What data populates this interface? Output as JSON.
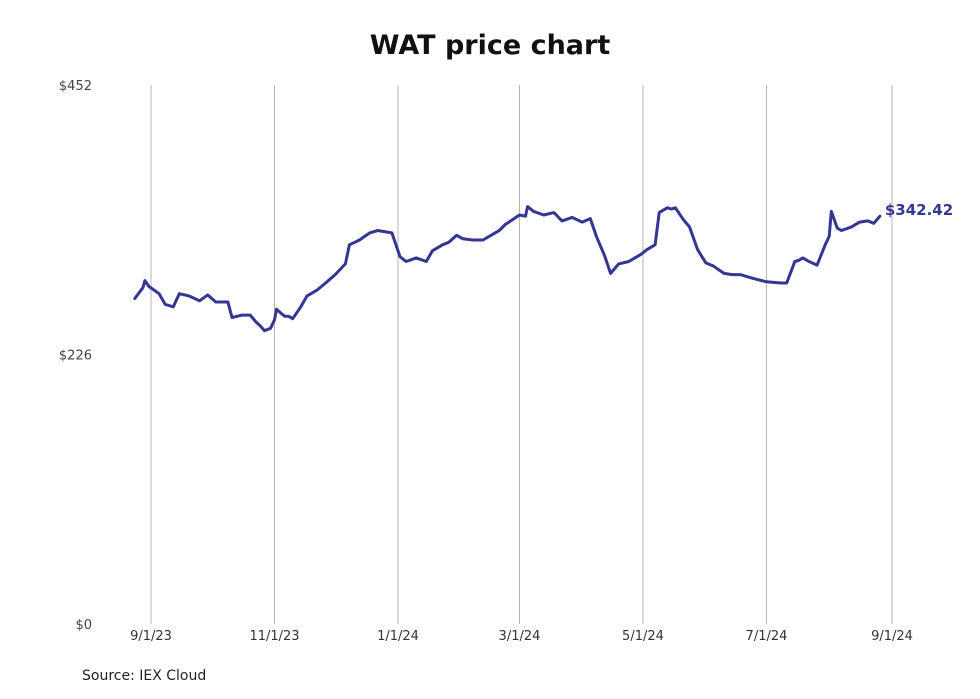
{
  "chart_data": {
    "type": "line",
    "title": "WAT price chart",
    "xlabel": "",
    "ylabel": "",
    "ylim": [
      0,
      452
    ],
    "y_ticks": [
      {
        "value": 0,
        "label": "$0"
      },
      {
        "value": 226,
        "label": "$226"
      },
      {
        "value": 452,
        "label": "$452"
      }
    ],
    "x_ticks": [
      {
        "date": "2023-09-01",
        "label": "9/1/23"
      },
      {
        "date": "2023-11-01",
        "label": "11/1/23"
      },
      {
        "date": "2024-01-01",
        "label": "1/1/24"
      },
      {
        "date": "2024-03-01",
        "label": "3/1/24"
      },
      {
        "date": "2024-05-01",
        "label": "5/1/24"
      },
      {
        "date": "2024-07-01",
        "label": "7/1/24"
      },
      {
        "date": "2024-09-01",
        "label": "9/1/24"
      }
    ],
    "grid": "vertical",
    "line_color": "#353594",
    "last_value_label": "$342.42",
    "series": [
      {
        "points": [
          [
            "2023-08-24",
            273
          ],
          [
            "2023-08-28",
            282
          ],
          [
            "2023-08-29",
            288
          ],
          [
            "2023-08-31",
            283
          ],
          [
            "2023-09-05",
            277
          ],
          [
            "2023-09-08",
            268
          ],
          [
            "2023-09-12",
            266
          ],
          [
            "2023-09-15",
            277
          ],
          [
            "2023-09-20",
            275
          ],
          [
            "2023-09-25",
            271
          ],
          [
            "2023-09-29",
            276
          ],
          [
            "2023-10-03",
            270
          ],
          [
            "2023-10-06",
            270
          ],
          [
            "2023-10-09",
            270
          ],
          [
            "2023-10-11",
            257
          ],
          [
            "2023-10-16",
            259
          ],
          [
            "2023-10-20",
            259
          ],
          [
            "2023-10-23",
            253
          ],
          [
            "2023-10-25",
            250
          ],
          [
            "2023-10-27",
            246
          ],
          [
            "2023-10-30",
            248
          ],
          [
            "2023-11-01",
            255
          ],
          [
            "2023-11-02",
            264
          ],
          [
            "2023-11-06",
            258
          ],
          [
            "2023-11-08",
            258
          ],
          [
            "2023-11-10",
            256
          ],
          [
            "2023-11-14",
            266
          ],
          [
            "2023-11-17",
            275
          ],
          [
            "2023-11-22",
            280
          ],
          [
            "2023-11-27",
            287
          ],
          [
            "2023-12-01",
            293
          ],
          [
            "2023-12-06",
            302
          ],
          [
            "2023-12-08",
            318
          ],
          [
            "2023-12-13",
            322
          ],
          [
            "2023-12-18",
            328
          ],
          [
            "2023-12-22",
            330
          ],
          [
            "2023-12-29",
            328
          ],
          [
            "2024-01-02",
            308
          ],
          [
            "2024-01-05",
            304
          ],
          [
            "2024-01-10",
            307
          ],
          [
            "2024-01-15",
            304
          ],
          [
            "2024-01-18",
            313
          ],
          [
            "2024-01-23",
            318
          ],
          [
            "2024-01-26",
            320
          ],
          [
            "2024-01-30",
            326
          ],
          [
            "2024-02-02",
            323
          ],
          [
            "2024-02-07",
            322
          ],
          [
            "2024-02-12",
            322
          ],
          [
            "2024-02-15",
            325
          ],
          [
            "2024-02-20",
            330
          ],
          [
            "2024-02-23",
            335
          ],
          [
            "2024-03-01",
            343
          ],
          [
            "2024-03-04",
            342
          ],
          [
            "2024-03-05",
            350
          ],
          [
            "2024-03-08",
            346
          ],
          [
            "2024-03-13",
            343
          ],
          [
            "2024-03-18",
            345
          ],
          [
            "2024-03-22",
            338
          ],
          [
            "2024-03-27",
            341
          ],
          [
            "2024-04-01",
            337
          ],
          [
            "2024-04-05",
            340
          ],
          [
            "2024-04-08",
            325
          ],
          [
            "2024-04-12",
            309
          ],
          [
            "2024-04-15",
            294
          ],
          [
            "2024-04-19",
            302
          ],
          [
            "2024-04-24",
            304
          ],
          [
            "2024-04-30",
            310
          ],
          [
            "2024-05-03",
            314
          ],
          [
            "2024-05-07",
            318
          ],
          [
            "2024-05-09",
            345
          ],
          [
            "2024-05-13",
            349
          ],
          [
            "2024-05-15",
            348
          ],
          [
            "2024-05-17",
            349
          ],
          [
            "2024-05-21",
            339
          ],
          [
            "2024-05-24",
            333
          ],
          [
            "2024-05-28",
            314
          ],
          [
            "2024-06-01",
            303
          ],
          [
            "2024-06-05",
            300
          ],
          [
            "2024-06-10",
            294
          ],
          [
            "2024-06-14",
            293
          ],
          [
            "2024-06-18",
            293
          ],
          [
            "2024-06-24",
            290
          ],
          [
            "2024-07-01",
            287
          ],
          [
            "2024-07-08",
            286
          ],
          [
            "2024-07-11",
            286
          ],
          [
            "2024-07-15",
            304
          ],
          [
            "2024-07-17",
            305
          ],
          [
            "2024-07-19",
            307
          ],
          [
            "2024-07-22",
            304
          ],
          [
            "2024-07-26",
            301
          ],
          [
            "2024-07-30",
            318
          ],
          [
            "2024-08-01",
            325
          ],
          [
            "2024-08-02",
            346
          ],
          [
            "2024-08-05",
            332
          ],
          [
            "2024-08-07",
            330
          ],
          [
            "2024-08-12",
            333
          ],
          [
            "2024-08-16",
            337
          ],
          [
            "2024-08-20",
            338
          ],
          [
            "2024-08-23",
            336
          ],
          [
            "2024-08-26",
            342
          ]
        ]
      }
    ]
  },
  "source_note": "Source: IEX Cloud"
}
